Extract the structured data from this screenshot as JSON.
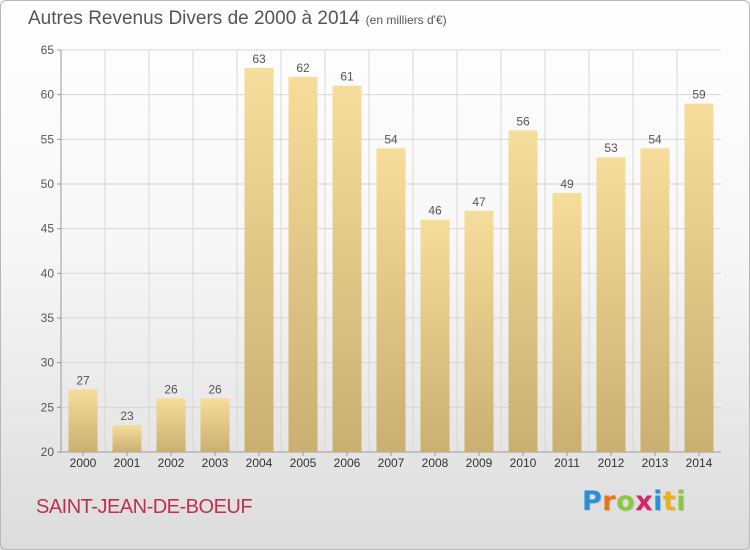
{
  "chart_data": {
    "type": "bar",
    "title": "Autres Revenus Divers de 2000 à 2014",
    "subtitle": "(en milliers d'€)",
    "categories": [
      "2000",
      "2001",
      "2002",
      "2003",
      "2004",
      "2005",
      "2006",
      "2007",
      "2008",
      "2009",
      "2010",
      "2011",
      "2012",
      "2013",
      "2014"
    ],
    "values": [
      27,
      23,
      26,
      26,
      63,
      62,
      61,
      54,
      46,
      47,
      56,
      49,
      53,
      54,
      59
    ],
    "ylim": [
      20,
      65
    ],
    "yticks": [
      20,
      25,
      30,
      35,
      40,
      45,
      50,
      55,
      60,
      65
    ],
    "grid": true,
    "data_labels": true,
    "bar_color_light": "#f6dd9b",
    "bar_color_dark": "#c9b071",
    "grid_color": "#d8d8d8",
    "label_color": "#555555"
  },
  "location": "SAINT-JEAN-DE-BOEUF",
  "logo": {
    "text": "Proxiti",
    "letters": [
      {
        "ch": "P",
        "color": "#2b8fd6"
      },
      {
        "ch": "r",
        "color": "#e8731c"
      },
      {
        "ch": "o",
        "color": "#8dc63f"
      },
      {
        "ch": "x",
        "color": "#d6246e"
      },
      {
        "ch": "i",
        "color": "#2b8fd6"
      },
      {
        "ch": "t",
        "color": "#e8b21c"
      },
      {
        "ch": "i",
        "color": "#8dc63f"
      }
    ]
  }
}
